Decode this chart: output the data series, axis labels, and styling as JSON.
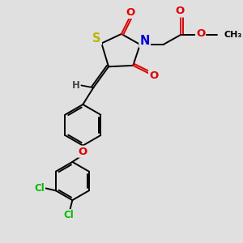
{
  "bg_color": "#e0e0e0",
  "bond_color": "#000000",
  "bond_width": 1.4,
  "atom_colors": {
    "S": "#b8b800",
    "N": "#0000dd",
    "O": "#dd0000",
    "Cl": "#00bb00",
    "H": "#444444"
  },
  "font_size": 8.5,
  "fig_size": [
    3.0,
    3.0
  ],
  "dpi": 100
}
